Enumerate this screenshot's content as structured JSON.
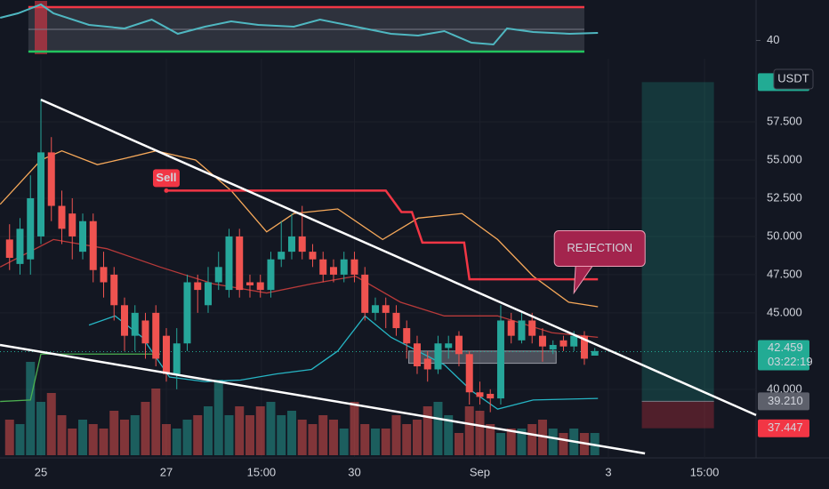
{
  "chart_data": [
    {
      "type": "line",
      "color": "#4fb7c1",
      "x": [
        -3.9,
        -2.2,
        0,
        1.2,
        4.6,
        8,
        10.6,
        13.1,
        15.7,
        18.2,
        20.8,
        24.2,
        26.7,
        30.1,
        33.5,
        36.1,
        38.6,
        41.2,
        43.3,
        44.6,
        47.1,
        50.6,
        53.3
      ],
      "values": [
        60.4,
        64.4,
        72.4,
        64.4,
        54.0,
        50.8,
        58.8,
        46.0,
        52.4,
        57.2,
        54.0,
        52.4,
        58.8,
        52.4,
        46.0,
        44.4,
        48.4,
        38.0,
        36.4,
        50.8,
        47.6,
        46.0,
        46.8
      ],
      "levels": [
        {
          "value": 70,
          "color": "#f23645"
        },
        {
          "value": 50,
          "color": "#787b86"
        },
        {
          "value": 30,
          "color": "#22c55e"
        }
      ],
      "xlim": [
        -3.915,
        68.43
      ],
      "ylim": [
        27.6,
        75.6
      ],
      "yticks": [
        40
      ]
    },
    {
      "type": "candlestick",
      "up_color": "#26a69a",
      "down_color": "#ef5350",
      "currency": "USDT",
      "x": [
        -3,
        -2,
        -1,
        0,
        1,
        2,
        3,
        4,
        5,
        6,
        7,
        8,
        9,
        10,
        11,
        12,
        13,
        14,
        15,
        16,
        17,
        18,
        19,
        20,
        21,
        22,
        23,
        24,
        25,
        26,
        27,
        28,
        29,
        30,
        31,
        32,
        33,
        34,
        35,
        36,
        37,
        38,
        39,
        40,
        41,
        42,
        43,
        44,
        45,
        46,
        47,
        48,
        49,
        50,
        51,
        52,
        53
      ],
      "open": [
        49.8,
        48.2,
        48.5,
        50,
        55.5,
        52,
        51.5,
        49,
        51,
        48,
        47.5,
        45.5,
        43.5,
        44.5,
        45,
        43.5,
        41,
        43,
        47,
        45.5,
        47,
        46.5,
        50,
        47,
        47,
        46.5,
        48.5,
        49,
        50,
        49,
        48.5,
        48,
        47.5,
        48.5,
        47.5,
        45,
        45.5,
        45,
        44,
        43,
        42,
        41.3,
        42.7,
        43.5,
        42.3,
        39.8,
        39.7,
        39.4,
        44.5,
        43.2,
        44.5,
        43.5,
        42.6,
        43.2,
        42.8,
        43.5,
        42.2
      ],
      "high": [
        50.8,
        51.2,
        54,
        59,
        56.5,
        53,
        52.5,
        51.5,
        51.5,
        49,
        48,
        46,
        45.5,
        45,
        45.5,
        44,
        44,
        47.5,
        47.5,
        48,
        49,
        50.5,
        50.5,
        47.5,
        47.5,
        49,
        51,
        51.5,
        52,
        49.5,
        49,
        48.5,
        49,
        49,
        48,
        46,
        46,
        45.5,
        44.5,
        43.5,
        42.5,
        43.5,
        43.5,
        43.8,
        42.5,
        40.5,
        40,
        45.5,
        45,
        45,
        45,
        44,
        43.2,
        43.5,
        43.8,
        43.8,
        42.7
      ],
      "low": [
        47.8,
        47.5,
        47.5,
        49.5,
        51,
        49.5,
        48.5,
        48.5,
        47,
        46,
        44.5,
        42.5,
        42.5,
        42,
        41.5,
        40.5,
        40,
        42.5,
        45,
        45,
        46.5,
        46,
        46,
        46,
        46,
        46,
        48,
        48.5,
        48.5,
        48,
        47,
        47,
        47,
        47,
        44.5,
        44.5,
        44,
        43.5,
        42,
        41,
        40.5,
        41,
        42,
        41.5,
        39,
        39,
        38.5,
        39,
        43,
        43,
        43,
        41.8,
        42.3,
        42.5,
        42.5,
        41.6,
        42.2
      ],
      "close": [
        48.6,
        50.5,
        52.5,
        55.5,
        52,
        50.5,
        50,
        51,
        47.8,
        47,
        45.5,
        43.5,
        45,
        43,
        42,
        41,
        43,
        47,
        46.5,
        47,
        48,
        50,
        46.5,
        46.8,
        46.5,
        48.5,
        49,
        50,
        49,
        48.5,
        47.5,
        47.5,
        48.5,
        47.5,
        45,
        45.5,
        45,
        44,
        43,
        41.5,
        41.3,
        43,
        43,
        42.3,
        39.8,
        39.5,
        39.4,
        44.5,
        43.5,
        44.5,
        43.5,
        42.8,
        42.9,
        42.8,
        43.5,
        42,
        42.5
      ],
      "volume": [
        40,
        35,
        105,
        60,
        70,
        45,
        30,
        40,
        35,
        30,
        50,
        40,
        45,
        60,
        75,
        35,
        30,
        40,
        45,
        55,
        85,
        45,
        55,
        45,
        55,
        60,
        45,
        50,
        40,
        35,
        45,
        40,
        30,
        60,
        35,
        30,
        30,
        45,
        35,
        40,
        55,
        60,
        45,
        25,
        55,
        50,
        35,
        25,
        30,
        30,
        35,
        40,
        30,
        25,
        30,
        25,
        25
      ],
      "xlim": [
        -3.915,
        68.43
      ],
      "ylim": [
        35.8,
        61.4
      ],
      "yticks": [
        {
          "value": 40,
          "label": "40.000"
        },
        {
          "value": 45,
          "label": "45.000"
        },
        {
          "value": 47.5,
          "label": "47.500"
        },
        {
          "value": 50,
          "label": "50.000"
        },
        {
          "value": 52.5,
          "label": "52.500"
        },
        {
          "value": 55,
          "label": "55.000"
        },
        {
          "value": 57.5,
          "label": "57.500"
        }
      ],
      "xticks": [
        {
          "value": 0,
          "label": "25"
        },
        {
          "value": 12,
          "label": "27"
        },
        {
          "value": 21.1,
          "label": "15:00"
        },
        {
          "value": 30,
          "label": "30"
        },
        {
          "value": 42,
          "label": "Sep"
        },
        {
          "value": 54.3,
          "label": "3"
        },
        {
          "value": 63.5,
          "label": "15:00"
        }
      ],
      "lines": [
        {
          "color": "#f7a95a",
          "x": [
            -3.9,
            0,
            2,
            5.4,
            8,
            11,
            14.8,
            18.2,
            21.6,
            24.2,
            28.4,
            32.7,
            36.1,
            40.3,
            43.7,
            47.1,
            50.5,
            53.3
          ],
          "values": [
            52.1,
            55.0,
            55.6,
            54.7,
            55.1,
            55.6,
            55.0,
            53.0,
            50.3,
            51.5,
            51.8,
            49.8,
            51.2,
            51.5,
            49.8,
            47.4,
            45.7,
            45.4
          ]
        },
        {
          "color": "#b83a3a",
          "x": [
            -3.9,
            1.2,
            6.3,
            11.4,
            16.5,
            21.6,
            25.9,
            30.1,
            34.4,
            38.6,
            43.7,
            48.9,
            53.3
          ],
          "values": [
            48.0,
            49.8,
            49.2,
            48.0,
            46.9,
            46.3,
            46.9,
            47.4,
            45.7,
            44.8,
            44.8,
            43.7,
            43.4
          ]
        },
        {
          "color": "#26b5c4",
          "x": [
            4.6,
            7.1,
            9.7,
            12.3,
            15.7,
            19.1,
            22.5,
            25.9,
            28.4,
            31,
            33.5,
            38.6,
            41.2,
            43.7,
            47.1,
            53.3
          ],
          "values": [
            44.2,
            44.8,
            43.4,
            40.8,
            40.5,
            40.6,
            41.0,
            41.3,
            42.5,
            44.8,
            43.4,
            41.6,
            39.9,
            38.7,
            39.3,
            39.4
          ]
        },
        {
          "color": "#f23645",
          "x": [
            12,
            33,
            34.5,
            35.5,
            36.5,
            40.5,
            41,
            53.3
          ],
          "values": [
            53,
            53,
            51.6,
            51.6,
            49.6,
            49.6,
            47.2,
            47.2
          ]
        },
        {
          "color": "#4caf50",
          "x": [
            -3.9,
            -1,
            0,
            11.4
          ],
          "values": [
            39.2,
            39.3,
            42.3,
            42.3
          ]
        }
      ],
      "trendlines": [
        {
          "color": "#ffffff",
          "x": [
            0,
            68.43
          ],
          "values": [
            58.95,
            38.31
          ]
        },
        {
          "color": "#ffffff",
          "x": [
            -3.915,
            57.8
          ],
          "values": [
            42.9,
            35.8
          ]
        }
      ],
      "zones": [
        {
          "x": [
            35.2,
            49.3
          ],
          "values": [
            41.7,
            42.5
          ]
        }
      ],
      "last_price": {
        "value": 42.459,
        "label": "42.459"
      },
      "countdown": "03:22:19",
      "position": {
        "x": [
          57.5,
          64.4
        ],
        "target": 60.1,
        "entry": {
          "value": 39.21,
          "label": "39.210"
        },
        "stop": {
          "value": 37.447,
          "label": "37.447"
        }
      },
      "annotations": [
        {
          "text": "Sell",
          "x": 12,
          "value": 53
        },
        {
          "text": "REJECTION",
          "x": 51,
          "value": 46.3
        }
      ]
    }
  ]
}
